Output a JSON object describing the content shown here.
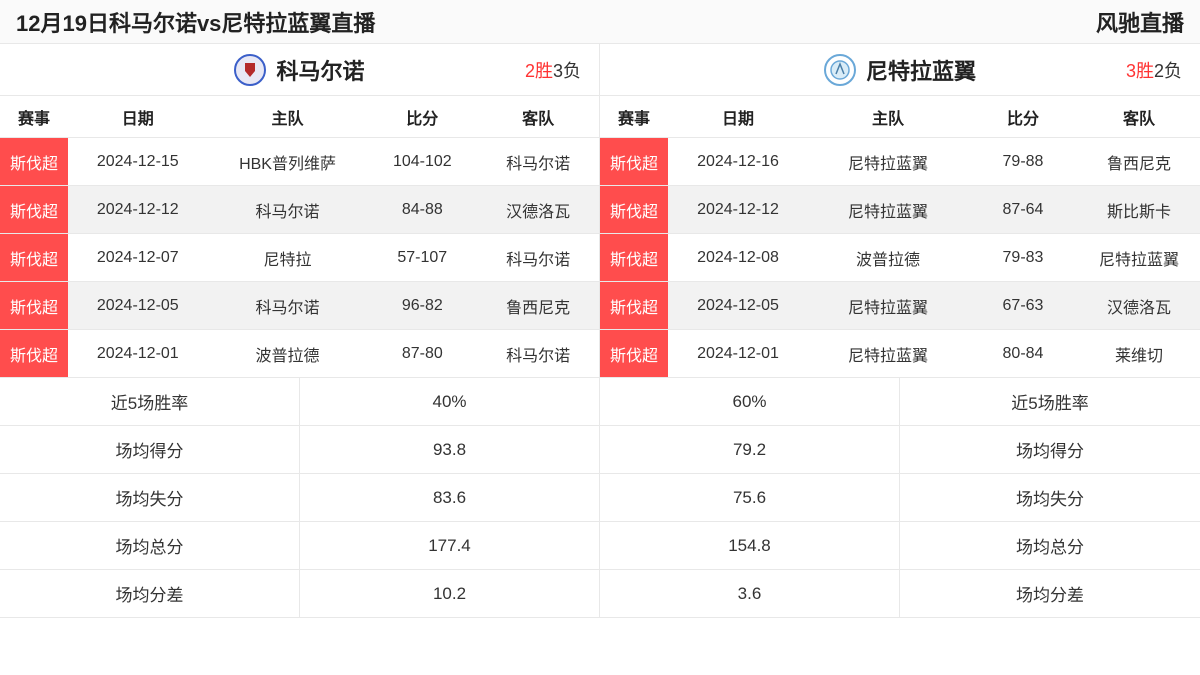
{
  "header": {
    "title": "12月19日科马尔诺vs尼特拉蓝翼直播",
    "brand": "风驰直播"
  },
  "colors": {
    "badge_bg": "#ff4d4d",
    "badge_fg": "#ffffff",
    "wins": "#ff3333",
    "losses": "#333333",
    "alt_row": "#f2f2f2",
    "border": "#e8e8e8",
    "logo_left_outer": "#3b5fc9",
    "logo_left_inner": "#b42a2a",
    "logo_right": "#6aa8d8"
  },
  "columns": {
    "league": "赛事",
    "date": "日期",
    "home": "主队",
    "score": "比分",
    "away": "客队"
  },
  "left": {
    "team_name": "科马尔诺",
    "wins_label": "2胜",
    "losses_label": "3负",
    "rows": [
      {
        "league": "斯伐超",
        "date": "2024-12-15",
        "home": "HBK普列维萨",
        "score": "104-102",
        "away": "科马尔诺"
      },
      {
        "league": "斯伐超",
        "date": "2024-12-12",
        "home": "科马尔诺",
        "score": "84-88",
        "away": "汉德洛瓦"
      },
      {
        "league": "斯伐超",
        "date": "2024-12-07",
        "home": "尼特拉",
        "score": "57-107",
        "away": "科马尔诺"
      },
      {
        "league": "斯伐超",
        "date": "2024-12-05",
        "home": "科马尔诺",
        "score": "96-82",
        "away": "鲁西尼克"
      },
      {
        "league": "斯伐超",
        "date": "2024-12-01",
        "home": "波普拉德",
        "score": "87-80",
        "away": "科马尔诺"
      }
    ]
  },
  "right": {
    "team_name": "尼特拉蓝翼",
    "wins_label": "3胜",
    "losses_label": "2负",
    "rows": [
      {
        "league": "斯伐超",
        "date": "2024-12-16",
        "home": "尼特拉蓝翼",
        "score": "79-88",
        "away": "鲁西尼克"
      },
      {
        "league": "斯伐超",
        "date": "2024-12-12",
        "home": "尼特拉蓝翼",
        "score": "87-64",
        "away": "斯比斯卡"
      },
      {
        "league": "斯伐超",
        "date": "2024-12-08",
        "home": "波普拉德",
        "score": "79-83",
        "away": "尼特拉蓝翼"
      },
      {
        "league": "斯伐超",
        "date": "2024-12-05",
        "home": "尼特拉蓝翼",
        "score": "67-63",
        "away": "汉德洛瓦"
      },
      {
        "league": "斯伐超",
        "date": "2024-12-01",
        "home": "尼特拉蓝翼",
        "score": "80-84",
        "away": "莱维切"
      }
    ]
  },
  "stats": {
    "labels": {
      "rate": "近5场胜率",
      "pts_for": "场均得分",
      "pts_against": "场均失分",
      "total": "场均总分",
      "diff": "场均分差"
    },
    "left": {
      "rate": "40%",
      "pts_for": "93.8",
      "pts_against": "83.6",
      "total": "177.4",
      "diff": "10.2"
    },
    "right": {
      "rate": "60%",
      "pts_for": "79.2",
      "pts_against": "75.6",
      "total": "154.8",
      "diff": "3.6"
    }
  }
}
